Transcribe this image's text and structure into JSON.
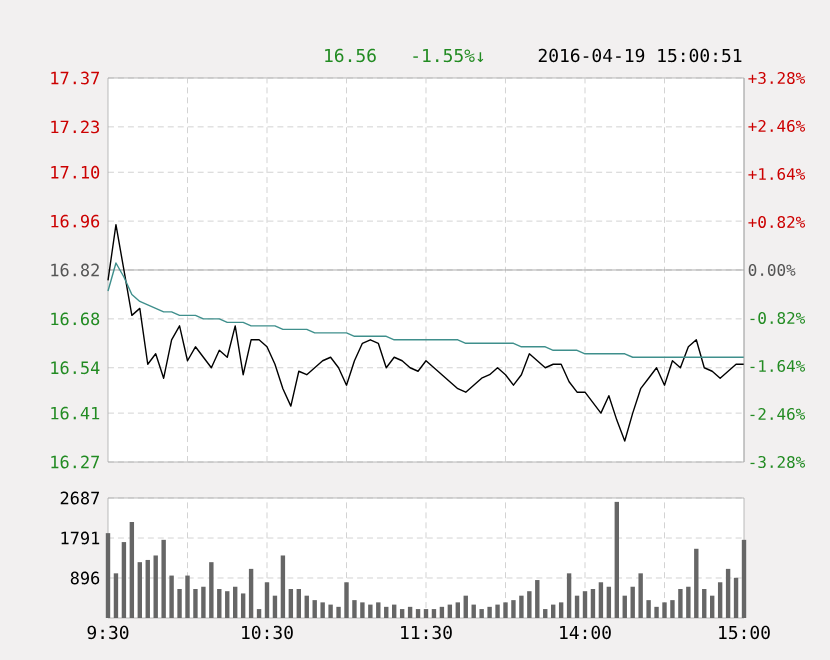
{
  "chart_data": [
    {
      "type": "line",
      "annotations": [
        "16.56",
        "-1.55%↓",
        "2016-04-19 15:00:51"
      ],
      "categories": [
        null,
        null,
        null,
        null,
        null,
        null,
        null,
        null,
        null,
        null,
        null,
        null,
        null,
        null,
        null,
        null,
        null,
        null,
        null,
        null,
        null,
        null,
        null,
        null,
        null,
        null,
        null,
        null,
        null,
        null,
        null,
        null,
        null,
        null,
        null,
        null,
        null,
        null,
        null,
        null,
        null,
        null,
        null,
        null,
        null,
        null,
        null,
        null,
        null,
        null,
        null,
        null,
        null,
        null,
        null,
        null,
        null,
        null,
        null,
        null,
        null,
        null,
        null,
        null,
        null,
        null,
        null,
        null,
        null,
        null,
        null,
        null,
        null,
        null,
        null,
        null,
        null,
        null,
        null,
        null,
        null
      ],
      "ylim": [
        16.27,
        17.37
      ],
      "yticks": [
        16.27,
        16.41,
        16.54,
        16.68,
        16.82,
        16.96,
        {
          "value": 17.1,
          "label": "17.10"
        },
        17.23,
        17.37
      ],
      "y2lim": [
        -3.28,
        3.28
      ],
      "y2ticks": [
        {
          "value": -3.28,
          "label": "-3.28%"
        },
        {
          "value": -2.46,
          "label": "-2.46%"
        },
        {
          "value": -1.64,
          "label": "-1.64%"
        },
        {
          "value": -0.82,
          "label": "-0.82%"
        },
        {
          "value": 0,
          "label": "0.00%"
        },
        {
          "value": 0.82,
          "label": "+0.82%"
        },
        {
          "value": 1.64,
          "label": "+1.64%"
        },
        {
          "value": 2.46,
          "label": "+2.46%"
        },
        {
          "value": 3.28,
          "label": "+3.28%"
        }
      ],
      "tick_labels": "y",
      "grid": true,
      "ref_lines": [
        {
          "axis": "y",
          "value": 16.82,
          "color": "#999999"
        }
      ],
      "series": [
        {
          "color": "#000000",
          "values": [
            16.79,
            16.95,
            16.82,
            16.69,
            16.71,
            16.55,
            16.58,
            16.51,
            16.62,
            16.66,
            16.56,
            16.6,
            16.57,
            16.54,
            16.59,
            16.57,
            16.66,
            16.52,
            16.62,
            16.62,
            16.6,
            16.55,
            16.48,
            16.43,
            16.53,
            16.52,
            16.54,
            16.56,
            16.57,
            16.54,
            16.49,
            16.56,
            16.61,
            16.62,
            16.61,
            16.54,
            16.57,
            16.56,
            16.54,
            16.53,
            16.56,
            16.54,
            16.52,
            16.5,
            16.48,
            16.47,
            16.49,
            16.51,
            16.52,
            16.54,
            16.52,
            16.49,
            16.52,
            16.58,
            16.56,
            16.54,
            16.55,
            16.55,
            16.5,
            16.47,
            16.47,
            16.44,
            16.41,
            16.46,
            16.39,
            16.33,
            16.41,
            16.48,
            16.51,
            16.54,
            16.49,
            16.56,
            16.54,
            16.6,
            16.62,
            16.54,
            16.53,
            16.51,
            16.53,
            16.55,
            16.55
          ]
        },
        {
          "color": "#3f8f8c",
          "values": [
            16.76,
            16.84,
            16.8,
            16.75,
            16.73,
            16.72,
            16.71,
            16.7,
            16.7,
            16.69,
            16.69,
            16.69,
            16.68,
            16.68,
            16.68,
            16.67,
            16.67,
            16.67,
            16.66,
            16.66,
            16.66,
            16.66,
            16.65,
            16.65,
            16.65,
            16.65,
            16.64,
            16.64,
            16.64,
            16.64,
            16.64,
            16.63,
            16.63,
            16.63,
            16.63,
            16.63,
            16.62,
            16.62,
            16.62,
            16.62,
            16.62,
            16.62,
            16.62,
            16.62,
            16.62,
            16.61,
            16.61,
            16.61,
            16.61,
            16.61,
            16.61,
            16.61,
            16.6,
            16.6,
            16.6,
            16.6,
            16.59,
            16.59,
            16.59,
            16.59,
            16.58,
            16.58,
            16.58,
            16.58,
            16.58,
            16.58,
            16.57,
            16.57,
            16.57,
            16.57,
            16.57,
            16.57,
            16.57,
            16.57,
            16.57,
            16.57,
            16.57,
            16.57,
            16.57,
            16.57,
            16.57
          ]
        }
      ]
    },
    {
      "type": "bar",
      "categories": [
        "9:30",
        null,
        null,
        null,
        null,
        null,
        null,
        null,
        null,
        null,
        null,
        null,
        null,
        null,
        null,
        null,
        null,
        null,
        null,
        null,
        "10:30",
        null,
        null,
        null,
        null,
        null,
        null,
        null,
        null,
        null,
        null,
        null,
        null,
        null,
        null,
        null,
        null,
        null,
        null,
        null,
        "11:30",
        null,
        null,
        null,
        null,
        null,
        null,
        null,
        null,
        null,
        null,
        null,
        null,
        null,
        null,
        null,
        null,
        null,
        null,
        null,
        "14:00",
        null,
        null,
        null,
        null,
        null,
        null,
        null,
        null,
        null,
        null,
        null,
        null,
        null,
        null,
        null,
        null,
        null,
        null,
        null,
        "15:00"
      ],
      "ylim": [
        0,
        2687
      ],
      "yticks": [
        896,
        1791,
        2687
      ],
      "grid": true,
      "series": [
        {
          "color": "#666666",
          "values": [
            1900,
            1000,
            1700,
            2150,
            1250,
            1300,
            1400,
            1750,
            950,
            650,
            950,
            650,
            700,
            1250,
            650,
            600,
            700,
            550,
            1100,
            200,
            800,
            500,
            1400,
            650,
            650,
            500,
            400,
            350,
            300,
            250,
            800,
            400,
            350,
            300,
            350,
            250,
            300,
            200,
            250,
            200,
            200,
            200,
            250,
            300,
            350,
            500,
            300,
            200,
            250,
            300,
            350,
            400,
            500,
            600,
            850,
            200,
            300,
            350,
            1000,
            500,
            600,
            650,
            800,
            700,
            2600,
            500,
            700,
            1000,
            400,
            250,
            350,
            400,
            650,
            700,
            1550,
            650,
            500,
            800,
            1100,
            900,
            1750
          ]
        }
      ]
    }
  ]
}
